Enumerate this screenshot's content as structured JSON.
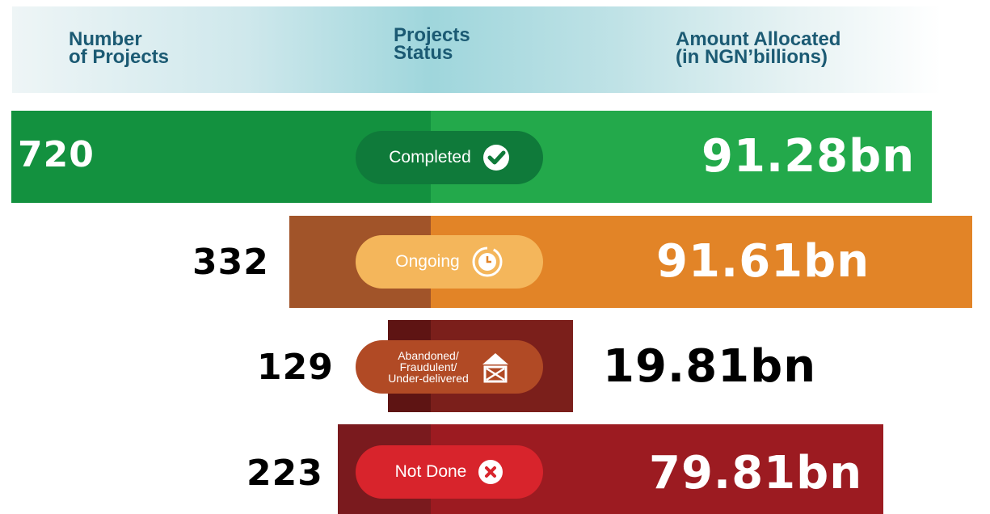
{
  "header": {
    "columns": [
      "Number\nof Projects",
      "Projects\nStatus",
      "Amount Allocated\n(in NGN’billions)"
    ]
  },
  "rows": [
    {
      "count": "720",
      "status": "Completed",
      "amount": "91.28bn"
    },
    {
      "count": "332",
      "status": "Ongoing",
      "amount": "91.61bn"
    },
    {
      "count": "129",
      "status": "Abandoned/\nFraudulent/\nUnder-delivered",
      "amount": "19.81bn"
    },
    {
      "count": "223",
      "status": "Not Done",
      "amount": "79.81bn"
    }
  ]
}
